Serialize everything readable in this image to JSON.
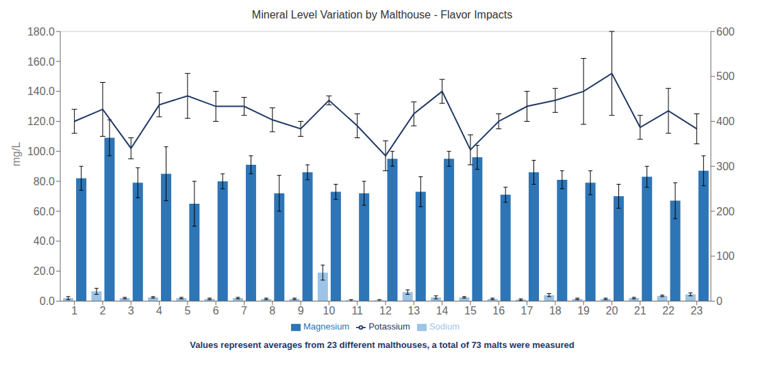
{
  "chart_data": {
    "type": "bar",
    "title": "Mineral Level Variation by Malthouse - Flavor Impacts",
    "ylabel": "mg/L",
    "footnote": "Values represent averages from 23 different malthouses, a total of 73 malts were measured",
    "categories": [
      1,
      2,
      3,
      4,
      5,
      6,
      7,
      8,
      9,
      10,
      11,
      12,
      13,
      14,
      15,
      16,
      17,
      18,
      19,
      20,
      21,
      22,
      23
    ],
    "series": [
      {
        "name": "Sodium",
        "type": "bar",
        "color": "#9DC3E6",
        "values": [
          2.0,
          6.5,
          2.0,
          2.5,
          2.0,
          1.5,
          2.0,
          1.5,
          1.5,
          19.0,
          0.5,
          0.5,
          6.0,
          2.5,
          2.5,
          1.5,
          1.0,
          4.0,
          1.5,
          1.5,
          2.0,
          3.5,
          4.5
        ],
        "errors": [
          1.0,
          2.0,
          0.5,
          0.5,
          0.5,
          0.5,
          0.5,
          0.5,
          0.5,
          5.0,
          0.5,
          0.5,
          1.5,
          1.0,
          0.5,
          0.5,
          0.5,
          1.0,
          0.5,
          0.5,
          0.5,
          0.5,
          1.0
        ]
      },
      {
        "name": "Magnesium",
        "type": "bar",
        "color": "#2E75B6",
        "values": [
          82.0,
          109.0,
          79.0,
          85.0,
          65.0,
          80.0,
          91.0,
          72.0,
          86.0,
          73.0,
          72.0,
          95.0,
          73.0,
          95.0,
          96.0,
          71.0,
          86.0,
          81.0,
          79.0,
          70.0,
          83.0,
          67.0,
          87.0
        ],
        "errors": [
          8.0,
          12.0,
          10.0,
          18.0,
          15.0,
          5.0,
          6.0,
          12.0,
          5.0,
          5.0,
          8.0,
          5.0,
          10.0,
          5.0,
          8.0,
          5.0,
          8.0,
          6.0,
          8.0,
          8.0,
          7.0,
          12.0,
          10.0
        ]
      },
      {
        "name": "Potassium",
        "type": "line",
        "color": "#1F3864",
        "values": [
          120.0,
          128.0,
          102.0,
          131.0,
          137.0,
          130.0,
          130.0,
          121.0,
          115.0,
          134.0,
          117.0,
          97.0,
          125.0,
          140.0,
          101.0,
          120.0,
          130.0,
          134.0,
          140.0,
          152.0,
          116.0,
          127.0,
          115.0
        ],
        "errors": [
          8.0,
          18.0,
          7.0,
          8.0,
          15.0,
          10.0,
          6.0,
          8.0,
          5.0,
          3.0,
          8.0,
          10.0,
          8.0,
          8.0,
          10.0,
          5.0,
          10.0,
          8.0,
          22.0,
          28.0,
          8.0,
          15.0,
          10.0
        ]
      }
    ],
    "ylim": [
      0,
      180
    ],
    "yticks": [
      {
        "value": 0,
        "label": "0.0"
      },
      {
        "value": 20,
        "label": "20.0"
      },
      {
        "value": 40,
        "label": "40.0"
      },
      {
        "value": 60,
        "label": "60.0"
      },
      {
        "value": 80,
        "label": "80.0"
      },
      {
        "value": 100,
        "label": "100.0"
      },
      {
        "value": 120,
        "label": "120.0"
      },
      {
        "value": 140,
        "label": "140.0"
      },
      {
        "value": 160,
        "label": "160.0"
      },
      {
        "value": 180,
        "label": "180.0"
      }
    ],
    "y2lim": [
      0,
      600
    ],
    "y2ticks": [
      0,
      100,
      200,
      300,
      400,
      500,
      600
    ],
    "grid": true,
    "legend": "bottom"
  }
}
